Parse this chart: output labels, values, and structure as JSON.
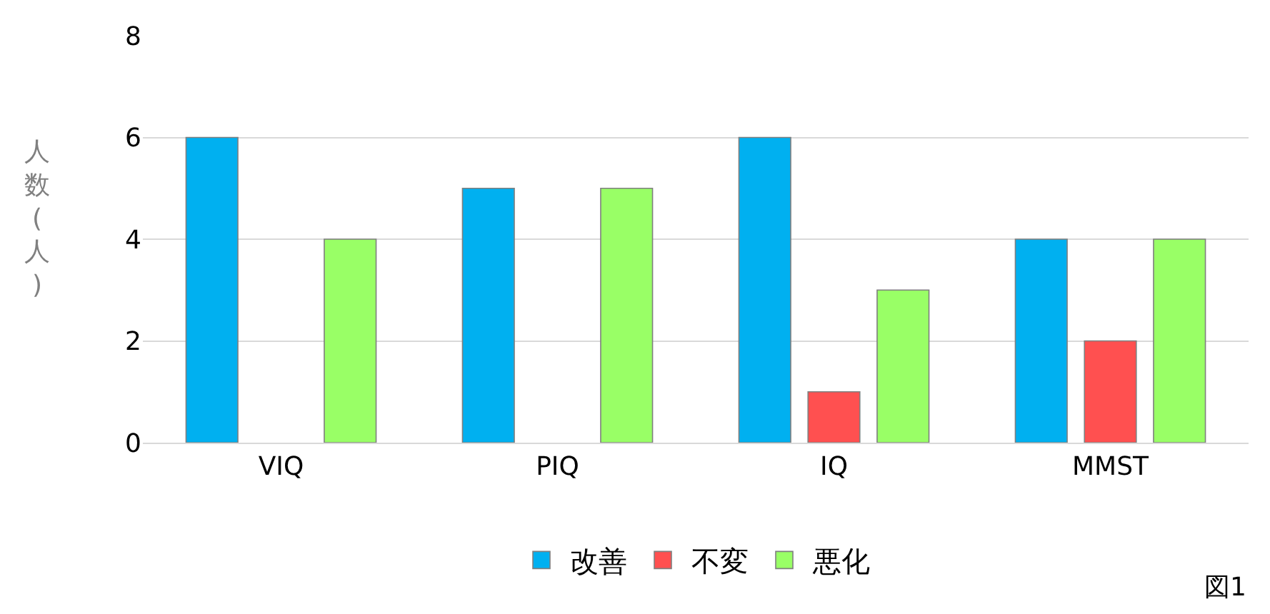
{
  "chart_data": {
    "type": "bar",
    "ylabel": "人数(人)",
    "categories": [
      "VIQ",
      "PIQ",
      "IQ",
      "MMST"
    ],
    "series": [
      {
        "name": "改善",
        "color": "#00b0f0",
        "values": [
          6,
          5,
          6,
          4
        ]
      },
      {
        "name": "不変",
        "color": "#ff5050",
        "values": [
          null,
          null,
          1,
          2
        ]
      },
      {
        "name": "悪化",
        "color": "#99ff66",
        "values": [
          4,
          5,
          3,
          4
        ]
      }
    ],
    "ylim": [
      0,
      8
    ],
    "yticks": [
      0,
      2,
      4,
      6,
      8
    ],
    "grid": "y",
    "legend": "bottom",
    "annotations": [
      "図1"
    ]
  }
}
